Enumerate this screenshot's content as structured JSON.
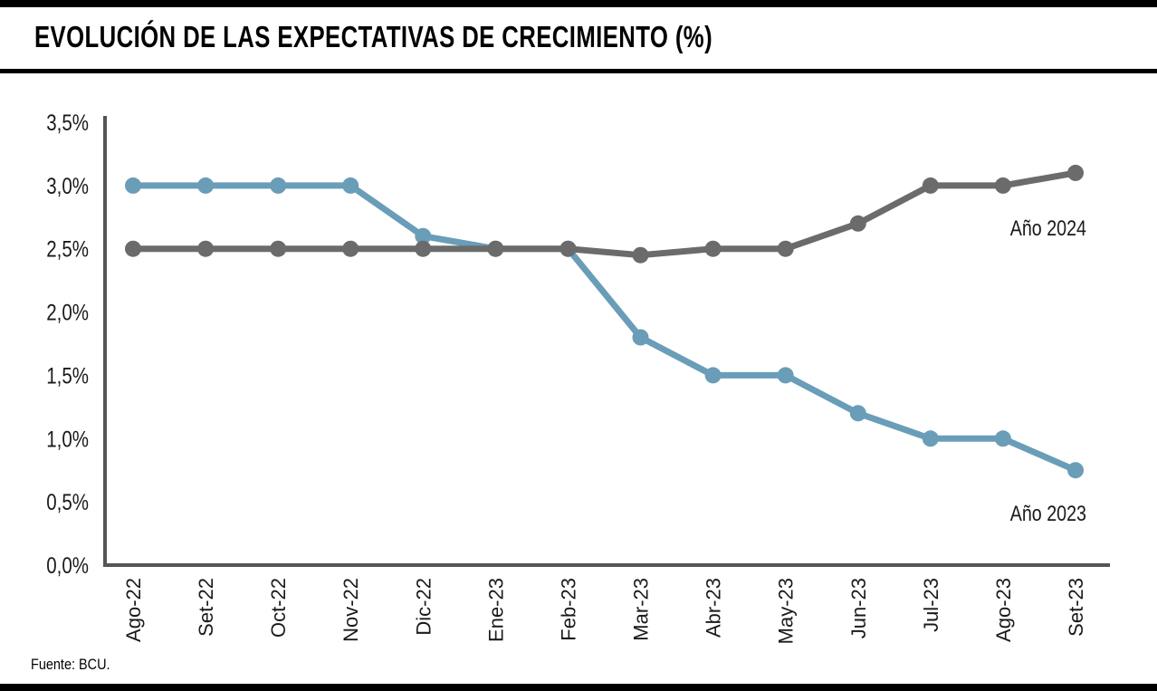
{
  "header": {
    "title": "EVOLUCIÓN DE LAS EXPECTATIVAS DE CRECIMIENTO (%)"
  },
  "footer": {
    "source": "Fuente: BCU."
  },
  "colors": {
    "series_2023": "#6a9db8",
    "series_2024": "#6b6b6b",
    "axis": "#555555"
  },
  "chart_data": {
    "type": "line",
    "title": "EVOLUCIÓN DE LAS EXPECTATIVAS DE CRECIMIENTO (%)",
    "xlabel": "",
    "ylabel": "",
    "categories": [
      "Ago-22",
      "Set-22",
      "Oct-22",
      "Nov-22",
      "Dic-22",
      "Ene-23",
      "Feb-23",
      "Mar-23",
      "Abr-23",
      "May-23",
      "Jun-23",
      "Jul-23",
      "Ago-23",
      "Set-23"
    ],
    "y_ticks": [
      "0,0%",
      "0,5%",
      "1,0%",
      "1,5%",
      "2,0%",
      "2,5%",
      "3,0%",
      "3,5%"
    ],
    "ylim": [
      0,
      3.5
    ],
    "grid": false,
    "legend": "none",
    "series": [
      {
        "name": "Año 2023",
        "values": [
          3.0,
          3.0,
          3.0,
          3.0,
          2.6,
          2.5,
          2.5,
          1.8,
          1.5,
          1.5,
          1.2,
          1.0,
          1.0,
          0.75
        ]
      },
      {
        "name": "Año 2024",
        "values": [
          2.5,
          2.5,
          2.5,
          2.5,
          2.5,
          2.5,
          2.5,
          2.45,
          2.5,
          2.5,
          2.7,
          3.0,
          3.0,
          3.1
        ]
      }
    ]
  }
}
